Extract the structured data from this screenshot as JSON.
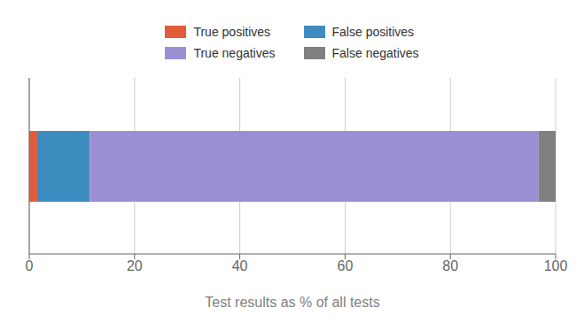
{
  "chart_data": {
    "type": "bar",
    "orientation": "horizontal",
    "stacked": true,
    "categories": [
      null
    ],
    "series": [
      {
        "name": "True positives",
        "color": "#e05c3a",
        "values": [
          1.5
        ]
      },
      {
        "name": "False positives",
        "color": "#3d8cbf",
        "values": [
          10.0
        ]
      },
      {
        "name": "True negatives",
        "color": "#9b8fd4",
        "values": [
          85.25
        ]
      },
      {
        "name": "False negatives",
        "color": "#808080",
        "values": [
          3.25
        ]
      }
    ],
    "xlabel": "Test results as % of all tests",
    "xlim": [
      0,
      100
    ],
    "xticks": [
      0,
      20,
      40,
      60,
      80,
      100
    ],
    "grid": true,
    "tick_labels": "x",
    "legend": "top"
  }
}
